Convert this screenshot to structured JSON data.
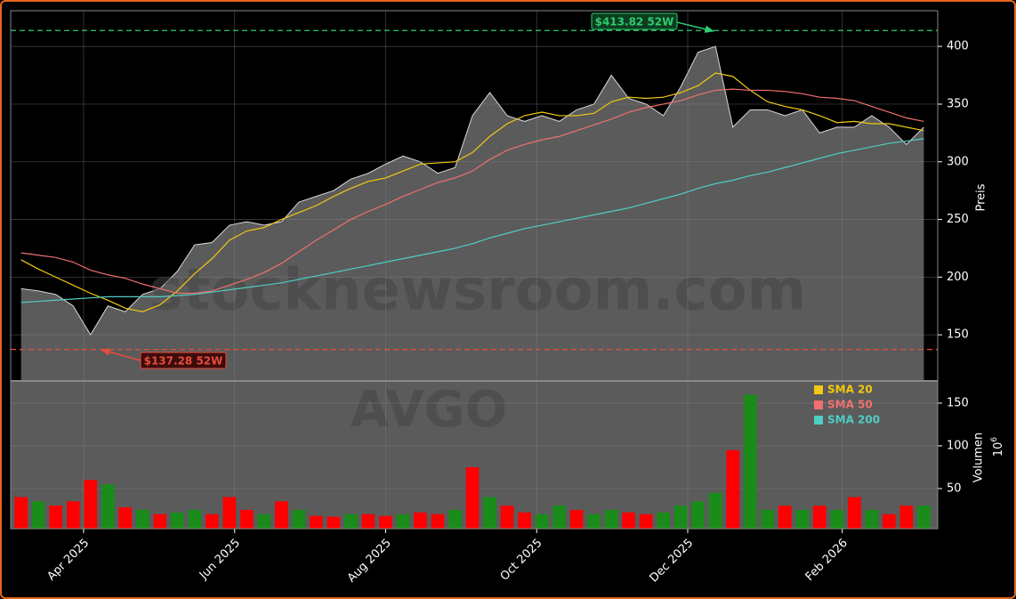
{
  "chart_data": [
    {
      "type": "area",
      "y_label": "Preis",
      "watermark": "stocknewsroom.com",
      "x": [
        0,
        1,
        2,
        3,
        4,
        5,
        6,
        7,
        8,
        9,
        10,
        11,
        12,
        13,
        14,
        15,
        16,
        17,
        18,
        19,
        20,
        21,
        22,
        23,
        24,
        25,
        26,
        27,
        28,
        29,
        30,
        31,
        32,
        33,
        34,
        35,
        36,
        37,
        38,
        39,
        40,
        41,
        42,
        43,
        44,
        45,
        46,
        47,
        48,
        49,
        50,
        51,
        52
      ],
      "xlim": [
        -0.6,
        52.8
      ],
      "values": [
        190,
        188,
        185,
        175,
        150,
        175,
        170,
        185,
        190,
        205,
        228,
        230,
        245,
        248,
        245,
        248,
        265,
        270,
        275,
        285,
        290,
        298,
        305,
        300,
        290,
        295,
        340,
        360,
        340,
        335,
        340,
        335,
        345,
        350,
        375,
        355,
        350,
        340,
        365,
        395,
        400,
        330,
        345,
        345,
        340,
        345,
        325,
        330,
        330,
        340,
        330,
        315,
        330
      ],
      "color": "#5b5b5b",
      "line_color": "#d8d8d8",
      "series": [
        {
          "name": "SMA 20",
          "color": "#f2c811",
          "values": [
            215,
            207,
            200,
            193,
            186,
            180,
            173,
            170,
            176,
            188,
            203,
            216,
            232,
            240,
            243,
            250,
            256,
            262,
            270,
            277,
            283,
            286,
            292,
            298,
            299,
            300,
            308,
            322,
            333,
            340,
            343,
            340,
            340,
            342,
            352,
            356,
            355,
            356,
            360,
            366,
            377,
            374,
            362,
            352,
            348,
            345,
            340,
            334,
            335,
            333,
            333,
            330,
            327
          ]
        },
        {
          "name": "SMA 50",
          "color": "#f07070",
          "values": [
            221,
            219,
            217,
            213,
            206,
            202,
            199,
            194,
            190,
            186,
            186,
            188,
            193,
            198,
            204,
            212,
            222,
            232,
            241,
            250,
            257,
            263,
            270,
            276,
            282,
            286,
            292,
            302,
            310,
            315,
            319,
            322,
            327,
            332,
            337,
            343,
            347,
            350,
            353,
            358,
            362,
            363,
            362,
            362,
            361,
            359,
            356,
            355,
            353,
            348,
            343,
            338,
            335
          ]
        },
        {
          "name": "SMA 200",
          "color": "#4ecdc4",
          "values": [
            178,
            179,
            180,
            181,
            182,
            183,
            183,
            183,
            183,
            184,
            185,
            187,
            189,
            191,
            193,
            195,
            198,
            201,
            204,
            207,
            210,
            213,
            216,
            219,
            222,
            225,
            229,
            234,
            238,
            242,
            245,
            248,
            251,
            254,
            257,
            260,
            264,
            268,
            272,
            277,
            281,
            284,
            288,
            291,
            295,
            299,
            303,
            307,
            310,
            313,
            316,
            318,
            320
          ]
        }
      ],
      "ylim": [
        110,
        431
      ],
      "yticks": [
        150,
        200,
        250,
        300,
        350,
        400
      ],
      "grid": true,
      "high": {
        "value": 413.82,
        "label": "$413.82 52W",
        "color": "#2ecc71"
      },
      "low": {
        "value": 137.28,
        "label": "$137.28 52W",
        "color": "#e74c3c"
      }
    },
    {
      "type": "bar",
      "y_label": "Volumen",
      "unit_base": "10",
      "unit_exponent": "6",
      "watermark": "AVGO",
      "x": [
        0,
        1,
        2,
        3,
        4,
        5,
        6,
        7,
        8,
        9,
        10,
        11,
        12,
        13,
        14,
        15,
        16,
        17,
        18,
        19,
        20,
        21,
        22,
        23,
        24,
        25,
        26,
        27,
        28,
        29,
        30,
        31,
        32,
        33,
        34,
        35,
        36,
        37,
        38,
        39,
        40,
        41,
        42,
        43,
        44,
        45,
        46,
        47,
        48,
        49,
        50,
        51,
        52
      ],
      "xlim": [
        -0.6,
        52.8
      ],
      "values": [
        40,
        35,
        30,
        35,
        60,
        55,
        28,
        25,
        20,
        22,
        25,
        20,
        40,
        25,
        20,
        35,
        25,
        18,
        17,
        20,
        20,
        18,
        20,
        22,
        20,
        25,
        75,
        40,
        30,
        22,
        20,
        30,
        25,
        20,
        25,
        22,
        20,
        22,
        30,
        35,
        45,
        95,
        160,
        25,
        30,
        25,
        30,
        25,
        40,
        25,
        20,
        30,
        30
      ],
      "colors": [
        "#ff0000",
        "#1a8c1a",
        "#ff0000",
        "#ff0000",
        "#ff0000",
        "#1a8c1a",
        "#ff0000",
        "#1a8c1a",
        "#ff0000",
        "#1a8c1a",
        "#1a8c1a",
        "#ff0000",
        "#ff0000",
        "#ff0000",
        "#1a8c1a",
        "#ff0000",
        "#1a8c1a",
        "#ff0000",
        "#ff0000",
        "#1a8c1a",
        "#ff0000",
        "#ff0000",
        "#1a8c1a",
        "#ff0000",
        "#ff0000",
        "#1a8c1a",
        "#ff0000",
        "#1a8c1a",
        "#ff0000",
        "#ff0000",
        "#1a8c1a",
        "#1a8c1a",
        "#ff0000",
        "#1a8c1a",
        "#1a8c1a",
        "#ff0000",
        "#ff0000",
        "#1a8c1a",
        "#1a8c1a",
        "#1a8c1a",
        "#1a8c1a",
        "#ff0000",
        "#1a8c1a",
        "#1a8c1a",
        "#ff0000",
        "#1a8c1a",
        "#ff0000",
        "#1a8c1a",
        "#ff0000",
        "#1a8c1a",
        "#ff0000",
        "#ff0000",
        "#1a8c1a"
      ],
      "ylim": [
        3,
        176
      ],
      "yticks": [
        50,
        100,
        150
      ],
      "grid": true,
      "xticks": [
        {
          "value": 3.6,
          "label": "Apr 2025"
        },
        {
          "value": 12.3,
          "label": "Jun 2025"
        },
        {
          "value": 21.0,
          "label": "Aug 2025"
        },
        {
          "value": 29.7,
          "label": "Oct 2025"
        },
        {
          "value": 38.4,
          "label": "Dec 2025"
        },
        {
          "value": 47.3,
          "label": "Feb 2026"
        }
      ]
    }
  ]
}
